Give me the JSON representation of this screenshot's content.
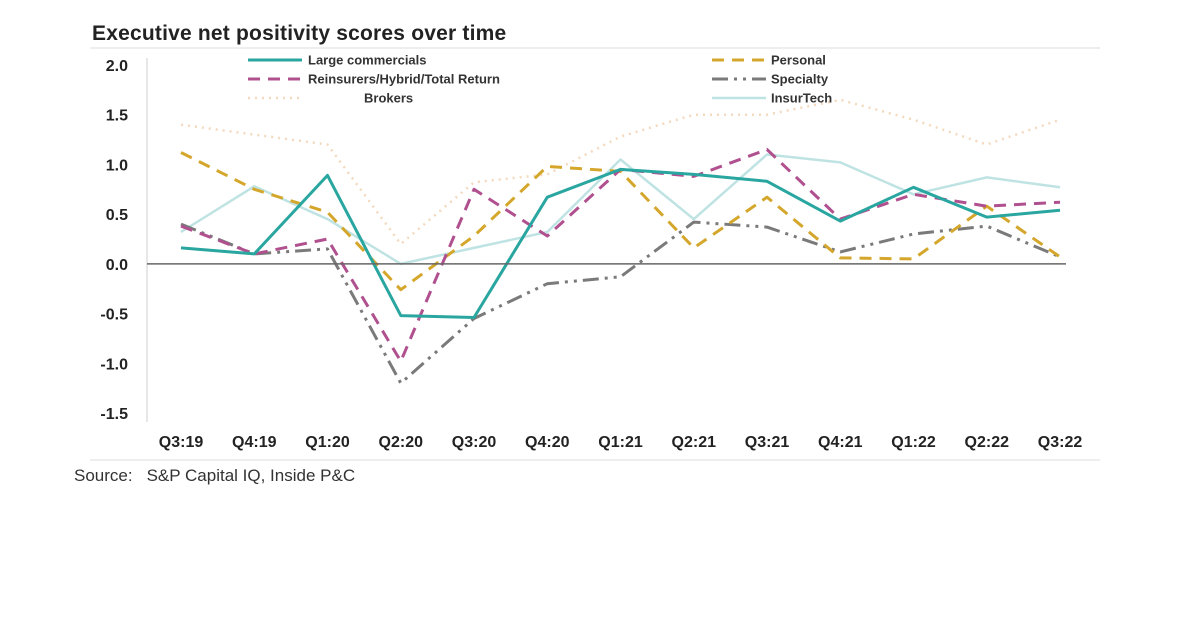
{
  "chart_data": {
    "type": "line",
    "title": "Executive net positivity scores over time",
    "source_label": "Source:",
    "source_text": "S&P Capital IQ, Inside P&C",
    "categories": [
      "Q3:19",
      "Q4:19",
      "Q1:20",
      "Q2:20",
      "Q3:20",
      "Q4:20",
      "Q1:21",
      "Q2:21",
      "Q3:21",
      "Q4:21",
      "Q1:22",
      "Q2:22",
      "Q3:22"
    ],
    "ylim": [
      -1.5,
      2.0
    ],
    "yticks": [
      "2.0",
      "1.5",
      "1.0",
      "0.5",
      "0.0",
      "-0.5",
      "-1.0",
      "-1.5"
    ],
    "ytick_values": [
      2.0,
      1.5,
      1.0,
      0.5,
      0.0,
      -0.5,
      -1.0,
      -1.5
    ],
    "xlabel": "",
    "ylabel": "",
    "grid": false,
    "legend_position": "top",
    "series": [
      {
        "name": "Large commercials",
        "color": "#2aa6a0",
        "dash": "",
        "width": 3,
        "values": [
          0.16,
          0.1,
          0.89,
          -0.52,
          -0.54,
          0.67,
          0.95,
          0.9,
          0.83,
          0.43,
          0.77,
          0.47,
          0.54
        ]
      },
      {
        "name": "Personal",
        "color": "#d4a72c",
        "dash": "12 8",
        "width": 3,
        "values": [
          1.12,
          0.75,
          0.52,
          -0.26,
          0.28,
          0.98,
          0.93,
          0.16,
          0.67,
          0.06,
          0.05,
          0.58,
          0.07
        ]
      },
      {
        "name": "Reinsurers/Hybrid/Total Return",
        "color": "#b0508f",
        "dash": "12 8",
        "width": 3,
        "values": [
          0.38,
          0.1,
          0.25,
          -0.98,
          0.75,
          0.28,
          0.95,
          0.88,
          1.15,
          0.45,
          0.7,
          0.58,
          0.62
        ]
      },
      {
        "name": "Specialty",
        "color": "#7a7a7a",
        "dash": "16 6 3 6 3 6",
        "width": 3,
        "values": [
          0.4,
          0.1,
          0.15,
          -1.2,
          -0.55,
          -0.2,
          -0.13,
          0.42,
          0.37,
          0.12,
          0.3,
          0.38,
          0.07
        ]
      },
      {
        "name": "Brokers",
        "color": "#f3d9be",
        "dash": "2 5",
        "width": 2.5,
        "values": [
          1.4,
          1.3,
          1.2,
          0.2,
          0.82,
          0.9,
          1.28,
          1.5,
          1.5,
          1.65,
          1.45,
          1.2,
          1.45
        ]
      },
      {
        "name": "InsurTech",
        "color": "#bfe3e3",
        "dash": "",
        "width": 2.5,
        "values": [
          0.32,
          0.78,
          0.45,
          0.0,
          0.16,
          0.32,
          1.05,
          0.45,
          1.1,
          1.02,
          0.7,
          0.87,
          0.77
        ]
      }
    ]
  }
}
